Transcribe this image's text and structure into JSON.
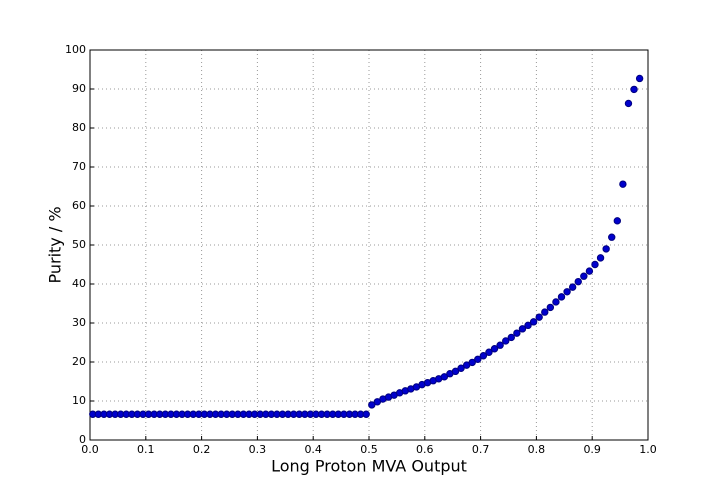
{
  "chart_data": {
    "type": "scatter",
    "x_label": "Long Proton MVA Output",
    "y_label": "Purity / %",
    "xlim": [
      0,
      1
    ],
    "ylim": [
      0,
      100
    ],
    "xticks": [
      {
        "value": 0,
        "label": "0.0"
      },
      0.1,
      0.2,
      0.3,
      0.4,
      0.5,
      0.6,
      0.7,
      0.8,
      0.9,
      {
        "value": 1,
        "label": "1.0"
      }
    ],
    "yticks": [
      0,
      10,
      20,
      30,
      40,
      50,
      60,
      70,
      80,
      90,
      100
    ],
    "grid": true,
    "color": "#0000cc",
    "x": [
      0.005,
      0.015,
      0.025,
      0.035,
      0.045,
      0.055,
      0.065,
      0.075,
      0.085,
      0.095,
      0.105,
      0.115,
      0.125,
      0.135,
      0.145,
      0.155,
      0.165,
      0.175,
      0.185,
      0.195,
      0.205,
      0.215,
      0.225,
      0.235,
      0.245,
      0.255,
      0.265,
      0.275,
      0.285,
      0.295,
      0.305,
      0.315,
      0.325,
      0.335,
      0.345,
      0.355,
      0.365,
      0.375,
      0.385,
      0.395,
      0.405,
      0.415,
      0.425,
      0.435,
      0.445,
      0.455,
      0.465,
      0.475,
      0.485,
      0.495,
      0.505,
      0.515,
      0.525,
      0.535,
      0.545,
      0.555,
      0.565,
      0.575,
      0.585,
      0.595,
      0.605,
      0.615,
      0.625,
      0.635,
      0.645,
      0.655,
      0.665,
      0.675,
      0.685,
      0.695,
      0.705,
      0.715,
      0.725,
      0.735,
      0.745,
      0.755,
      0.765,
      0.775,
      0.785,
      0.795,
      0.805,
      0.815,
      0.825,
      0.835,
      0.845,
      0.855,
      0.865,
      0.875,
      0.885,
      0.895,
      0.905,
      0.915,
      0.925,
      0.935,
      0.945,
      0.955,
      0.965,
      0.975,
      0.985
    ],
    "values": [
      6.6,
      6.6,
      6.6,
      6.6,
      6.6,
      6.6,
      6.6,
      6.6,
      6.6,
      6.6,
      6.6,
      6.6,
      6.6,
      6.6,
      6.6,
      6.6,
      6.6,
      6.6,
      6.6,
      6.6,
      6.6,
      6.6,
      6.6,
      6.6,
      6.6,
      6.6,
      6.6,
      6.6,
      6.6,
      6.6,
      6.6,
      6.6,
      6.6,
      6.6,
      6.6,
      6.6,
      6.6,
      6.6,
      6.6,
      6.6,
      6.6,
      6.6,
      6.6,
      6.6,
      6.6,
      6.6,
      6.6,
      6.6,
      6.6,
      6.6,
      9.0,
      9.8,
      10.5,
      11.0,
      11.5,
      12.1,
      12.6,
      13.1,
      13.6,
      14.2,
      14.7,
      15.2,
      15.7,
      16.2,
      17.0,
      17.6,
      18.4,
      19.2,
      19.9,
      20.7,
      21.6,
      22.5,
      23.4,
      24.3,
      25.4,
      26.3,
      27.4,
      28.5,
      29.4,
      30.3,
      31.5,
      32.8,
      34.0,
      35.4,
      36.7,
      38.0,
      39.2,
      40.6,
      42.0,
      43.3,
      45.0,
      46.7,
      49.0,
      52.0,
      56.2,
      65.6,
      86.3,
      89.9,
      92.7
    ]
  }
}
